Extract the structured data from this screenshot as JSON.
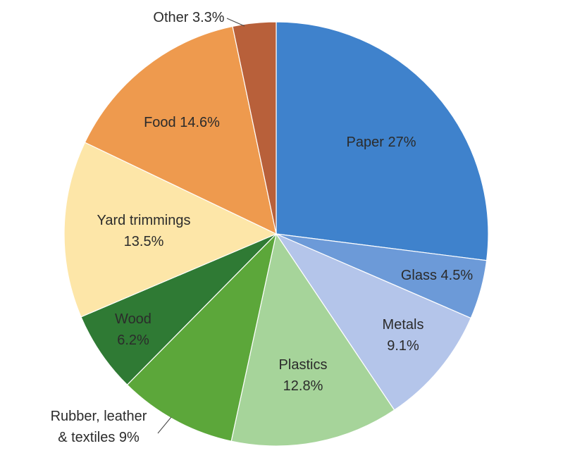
{
  "chart_data": {
    "type": "pie",
    "title": "",
    "slices": [
      {
        "name": "Paper",
        "value": 27,
        "value_label": "27%",
        "label": [
          "Paper 27%"
        ],
        "color": "#3f82cc"
      },
      {
        "name": "Glass",
        "value": 4.5,
        "value_label": "4.5%",
        "label": [
          "Glass 4.5%"
        ],
        "color": "#6c9ad8"
      },
      {
        "name": "Metals",
        "value": 9.1,
        "value_label": "9.1%",
        "label": [
          "Metals",
          "9.1%"
        ],
        "color": "#b4c5ea"
      },
      {
        "name": "Plastics",
        "value": 12.8,
        "value_label": "12.8%",
        "label": [
          "Plastics",
          "12.8%"
        ],
        "color": "#a6d49a"
      },
      {
        "name": "Rubber, leather & textiles",
        "value": 9,
        "value_label": "9%",
        "label": [
          "Rubber, leather",
          "& textiles 9%"
        ],
        "color": "#5ca73a"
      },
      {
        "name": "Wood",
        "value": 6.2,
        "value_label": "6.2%",
        "label": [
          "Wood",
          "6.2%"
        ],
        "color": "#2f7a34"
      },
      {
        "name": "Yard trimmings",
        "value": 13.5,
        "value_label": "13.5%",
        "label": [
          "Yard trimmings",
          "13.5%"
        ],
        "color": "#fde6a8"
      },
      {
        "name": "Food",
        "value": 14.6,
        "value_label": "14.6%",
        "label": [
          "Food 14.6%"
        ],
        "color": "#ee9a4e"
      },
      {
        "name": "Other",
        "value": 3.3,
        "value_label": "3.3%",
        "label": [
          "Other 3.3%"
        ],
        "color": "#b8603a"
      }
    ]
  }
}
